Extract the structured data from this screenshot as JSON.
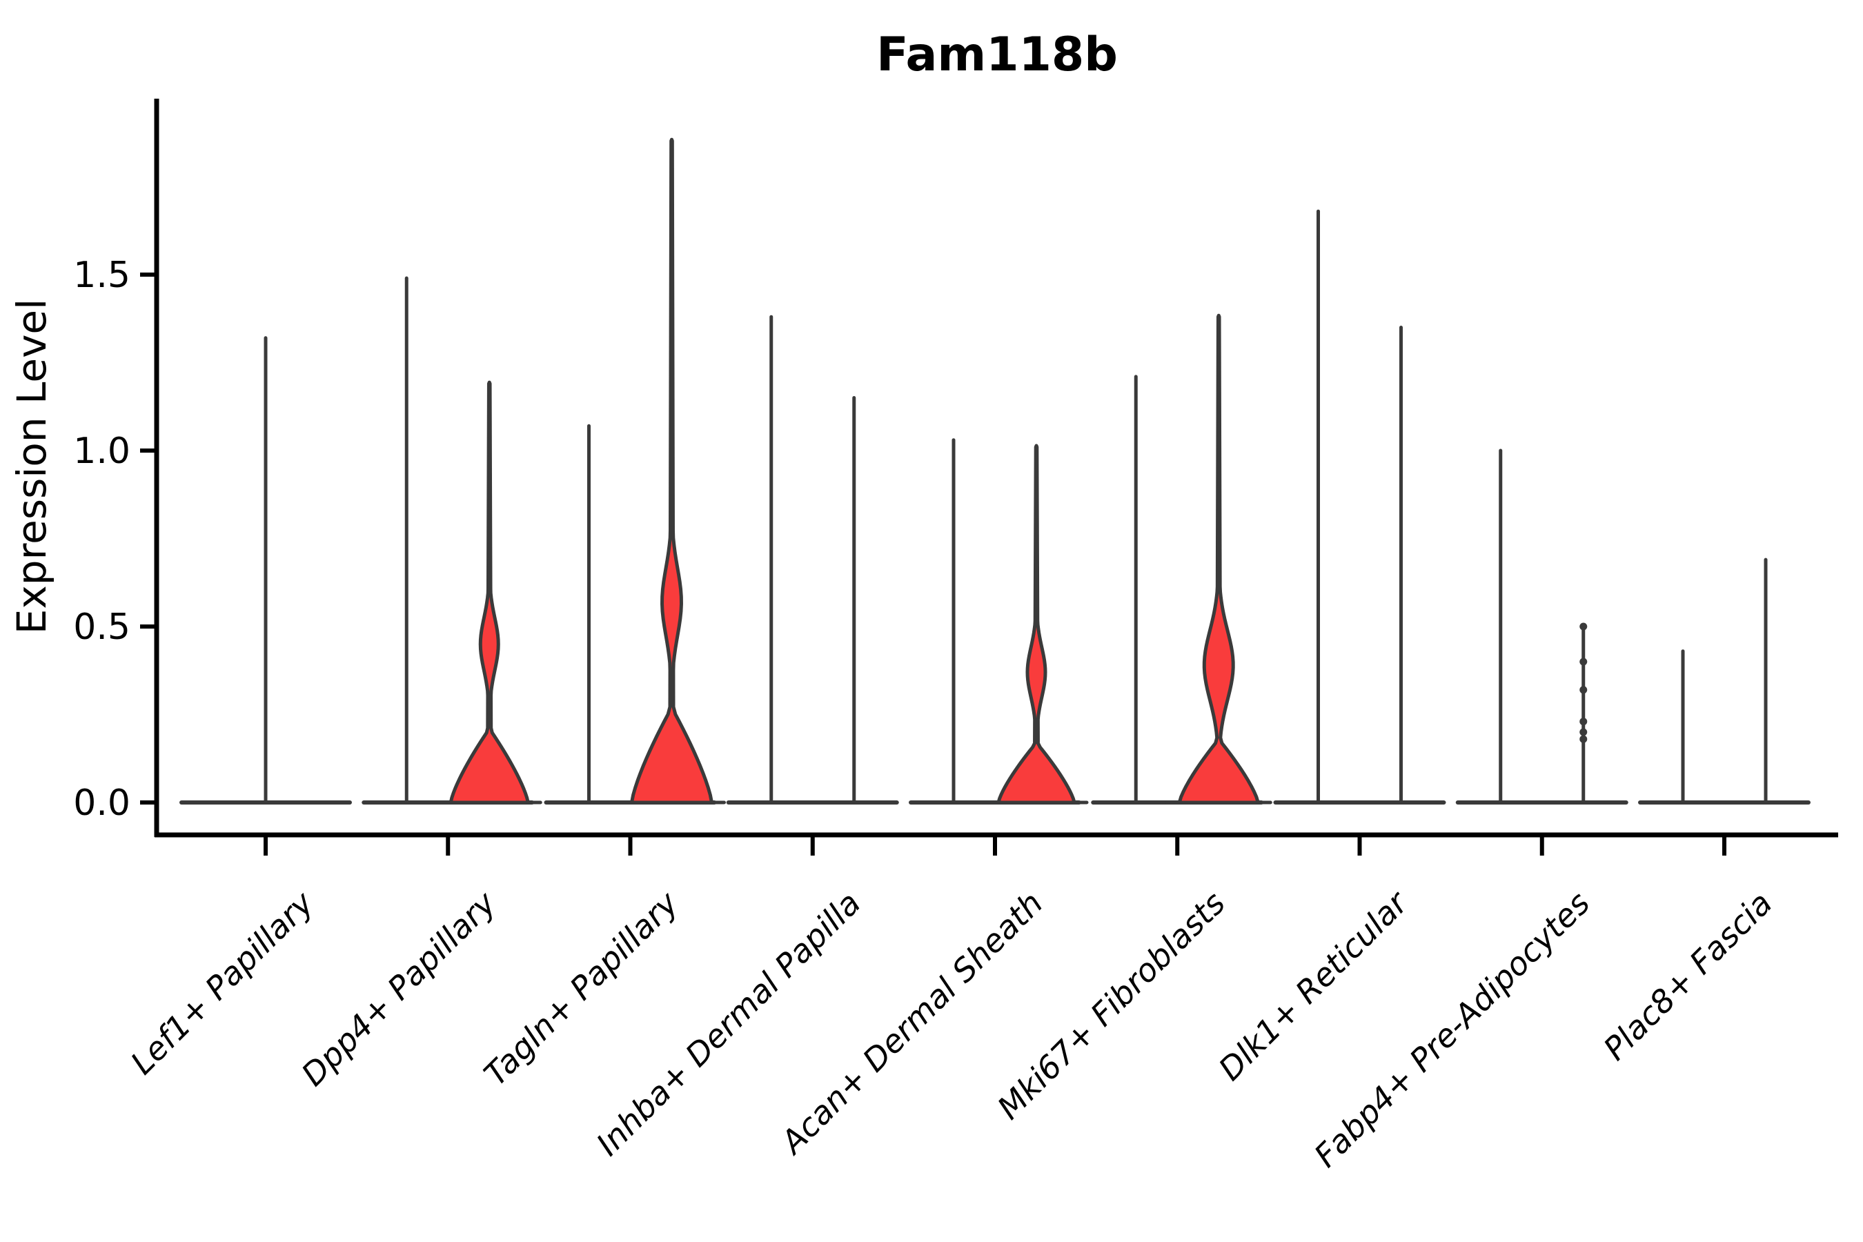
{
  "chart_data": {
    "type": "violin",
    "title": "Fam118b",
    "ylabel": "Expression Level",
    "xlabel": "",
    "yticks": [
      0.0,
      0.5,
      1.0,
      1.5
    ],
    "ylim": [
      0,
      2.0
    ],
    "grid": false,
    "legend": "none",
    "colors": {
      "violin_fill": "#f93c3c",
      "violin_stroke": "#3a3a3a",
      "axis": "#000000"
    },
    "categories": [
      "Lef1+ Papillary",
      "Dpp4+ Papillary",
      "Tagln+ Papillary",
      "Inhba+ Dermal Papilla",
      "Acan+ Dermal Sheath",
      "Mki67+ Fibroblasts",
      "Dlk1+ Reticular",
      "Fabp4+ Pre-Adipocytes",
      "Plac8+ Fascia"
    ],
    "groups": [
      {
        "label": "Lef1+ Papillary",
        "violins": [
          {
            "kind": "spike",
            "offset": 0,
            "max": 1.32
          }
        ]
      },
      {
        "label": "Dpp4+ Papillary",
        "violins": [
          {
            "kind": "spike",
            "offset": -60,
            "max": 1.49
          },
          {
            "kind": "body",
            "offset": 60,
            "max": 1.19,
            "bulge_center": 0.45,
            "bulge_width": 13,
            "bulge_sigma": 0.105,
            "base_width": 56,
            "base_vmax": 0.21
          }
        ]
      },
      {
        "label": "Tagln+ Papillary",
        "violins": [
          {
            "kind": "spike",
            "offset": -60,
            "max": 1.07
          },
          {
            "kind": "body",
            "offset": 60,
            "max": 1.88,
            "bulge_center": 0.57,
            "bulge_width": 14,
            "bulge_sigma": 0.135,
            "base_width": 58,
            "base_vmax": 0.27
          }
        ]
      },
      {
        "label": "Inhba+ Dermal Papilla",
        "violins": [
          {
            "kind": "spike",
            "offset": -60,
            "max": 1.38
          },
          {
            "kind": "spike",
            "offset": 60,
            "max": 1.15
          }
        ]
      },
      {
        "label": "Acan+ Dermal Sheath",
        "violins": [
          {
            "kind": "spike",
            "offset": -60,
            "max": 1.03
          },
          {
            "kind": "body",
            "offset": 60,
            "max": 1.01,
            "bulge_center": 0.37,
            "bulge_width": 13,
            "bulge_sigma": 0.1,
            "base_width": 55,
            "base_vmax": 0.17
          }
        ]
      },
      {
        "label": "Mki67+ Fibroblasts",
        "violins": [
          {
            "kind": "spike",
            "offset": -60,
            "max": 1.21
          },
          {
            "kind": "body",
            "offset": 60,
            "max": 1.38,
            "bulge_center": 0.39,
            "bulge_width": 21,
            "bulge_sigma": 0.14,
            "base_width": 57,
            "base_vmax": 0.18
          }
        ]
      },
      {
        "label": "Dlk1+ Reticular",
        "violins": [
          {
            "kind": "spike",
            "offset": -60,
            "max": 1.68
          },
          {
            "kind": "spike",
            "offset": 60,
            "max": 1.35
          }
        ]
      },
      {
        "label": "Fabp4+ Pre-Adipocytes",
        "violins": [
          {
            "kind": "spike",
            "offset": -60,
            "max": 1.0
          },
          {
            "kind": "spike",
            "offset": 60,
            "max": 0.5,
            "knobs": [
              0.5,
              0.4,
              0.32,
              0.23,
              0.2,
              0.18
            ]
          }
        ]
      },
      {
        "label": "Plac8+ Fascia",
        "violins": [
          {
            "kind": "spike",
            "offset": -60,
            "max": 0.43
          },
          {
            "kind": "spike",
            "offset": 60,
            "max": 0.69
          }
        ]
      }
    ]
  }
}
